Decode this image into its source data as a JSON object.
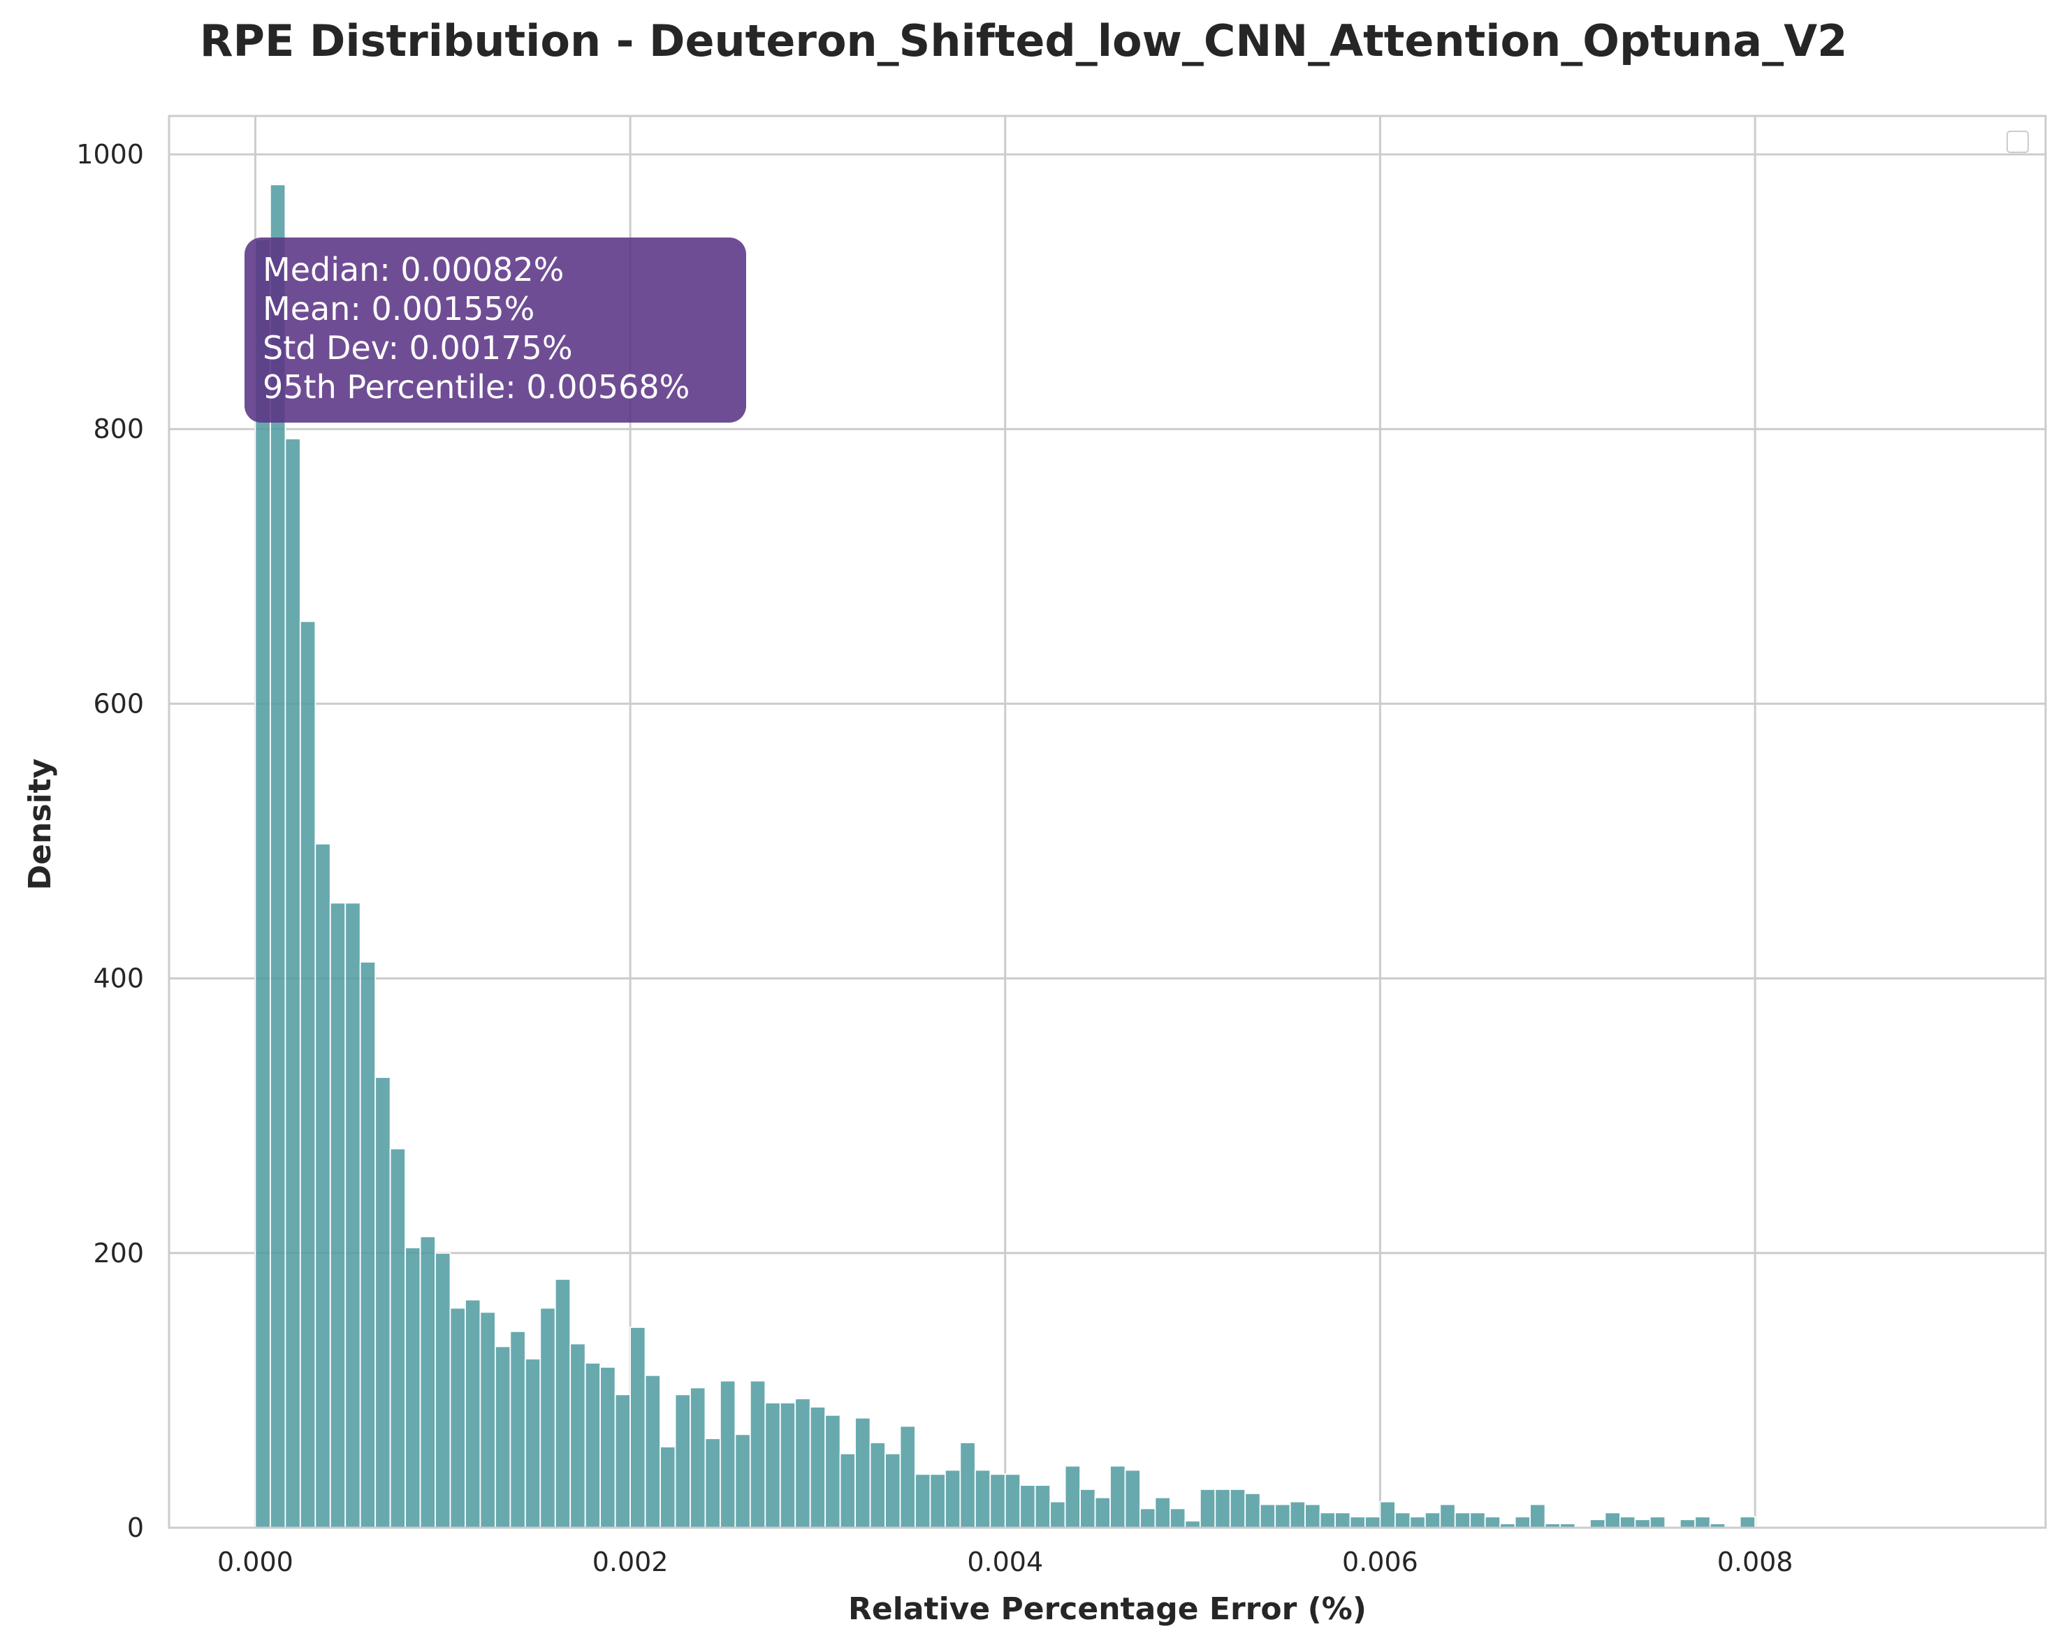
{
  "chart_data": {
    "type": "bar",
    "title": "RPE Distribution - Deuteron_Shifted_low_CNN_Attention_Optuna_V2",
    "xlabel": "Relative Percentage Error (%)",
    "ylabel": "Density",
    "xlim": [
      -0.00046,
      0.00955
    ],
    "ylim": [
      0,
      1028
    ],
    "xticks": [
      0.0,
      0.002,
      0.004,
      0.006,
      0.008
    ],
    "xtick_labels": [
      "0.000",
      "0.002",
      "0.004",
      "0.006",
      "0.008"
    ],
    "yticks": [
      0,
      200,
      400,
      600,
      800,
      1000
    ],
    "ytick_labels": [
      "0",
      "200",
      "400",
      "600",
      "800",
      "1000"
    ],
    "grid": true,
    "legend": "top-right (empty)",
    "bin_start": 0.0,
    "bin_width": 8e-05,
    "values": [
      938,
      978,
      793,
      660,
      498,
      455,
      455,
      412,
      328,
      276,
      204,
      212,
      200,
      160,
      166,
      157,
      132,
      143,
      123,
      160,
      181,
      134,
      120,
      117,
      97,
      146,
      111,
      59,
      97,
      102,
      65,
      107,
      68,
      107,
      91,
      91,
      94,
      88,
      82,
      54,
      80,
      62,
      54,
      74,
      39,
      39,
      42,
      62,
      42,
      39,
      39,
      31,
      31,
      19,
      45,
      28,
      22,
      45,
      42,
      14,
      22,
      14,
      5,
      28,
      28,
      28,
      25,
      17,
      17,
      19,
      17,
      11,
      11,
      8,
      8,
      19,
      11,
      8,
      11,
      17,
      11,
      11,
      8,
      3,
      8,
      17,
      3,
      3,
      0,
      6,
      11,
      8,
      6,
      8,
      0,
      6,
      8,
      3,
      0,
      8
    ],
    "bar_color": "#4e9aa0",
    "stats_box": {
      "lines": [
        "Median: 0.00082%",
        "Mean: 0.00155%",
        "Std Dev: 0.00175%",
        "95th Percentile: 0.00568%"
      ],
      "color": "#5b3485"
    }
  }
}
